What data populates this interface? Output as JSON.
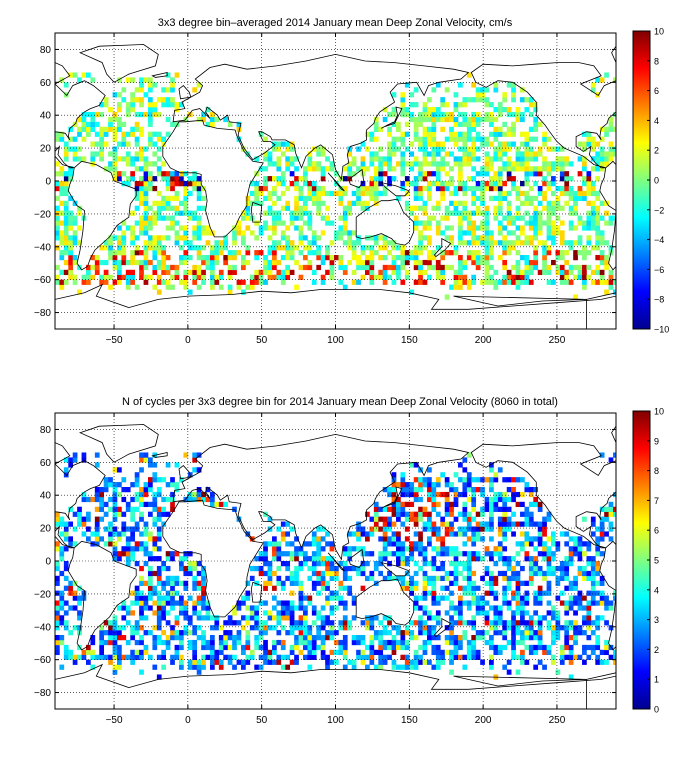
{
  "chart_data": [
    {
      "type": "heatmap",
      "title": "3x3 degree bin–averaged 2014 January mean Deep Zonal Velocity, cm/s",
      "xlabel": "",
      "ylabel": "",
      "xlim": [
        -90,
        290
      ],
      "ylim": [
        -90,
        90
      ],
      "xticks": [
        -50,
        0,
        50,
        100,
        150,
        200,
        250
      ],
      "yticks": [
        80,
        60,
        40,
        20,
        0,
        -20,
        -40,
        -60,
        -80
      ],
      "grid": true,
      "colorbar": {
        "range": [
          -10,
          10
        ],
        "ticks": [
          10,
          8,
          6,
          4,
          2,
          0,
          -2,
          -4,
          -6,
          -8,
          -10
        ],
        "colormap": "jet"
      },
      "bin_size_deg": 3,
      "note_bins": "Data bins shown as colored 3x3 degree squares over ocean areas; values mostly between -4 and 4 cm/s with strong positive values near 45-60S."
    },
    {
      "type": "heatmap",
      "title": "N of cycles per 3x3 degree bin for 2014 January mean Deep Zonal Velocity (8060 in total)",
      "xlabel": "",
      "ylabel": "",
      "xlim": [
        -90,
        290
      ],
      "ylim": [
        -90,
        90
      ],
      "xticks": [
        -50,
        0,
        50,
        100,
        150,
        200,
        250
      ],
      "yticks": [
        80,
        60,
        40,
        20,
        0,
        -20,
        -40,
        -60,
        -80
      ],
      "grid": true,
      "colorbar": {
        "range": [
          0,
          10
        ],
        "ticks": [
          10,
          9,
          8,
          7,
          6,
          5,
          4,
          3,
          2,
          1,
          0
        ],
        "colormap": "jet"
      },
      "bin_size_deg": 3
    }
  ]
}
